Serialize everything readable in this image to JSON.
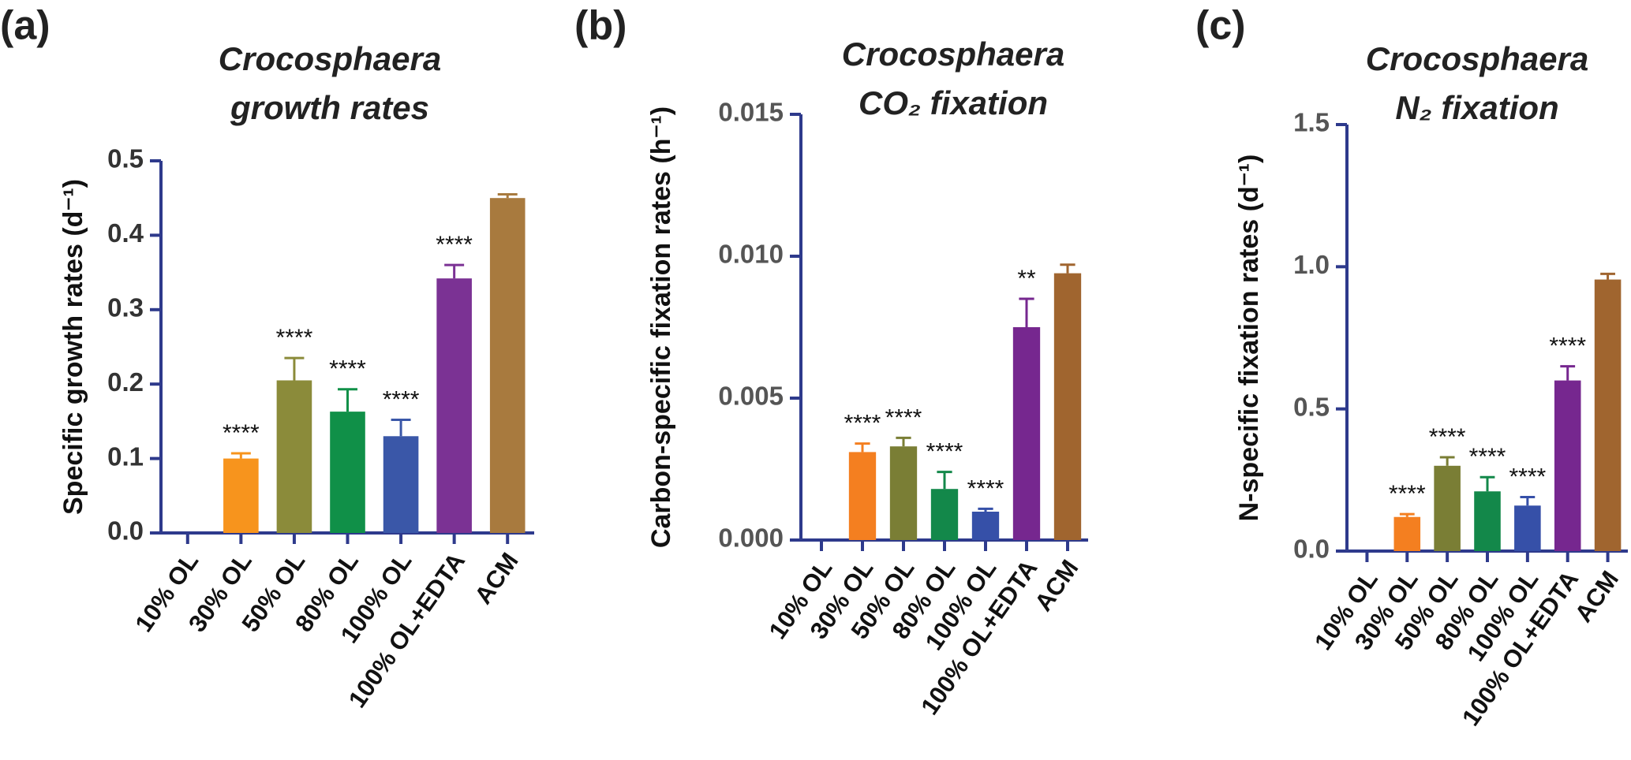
{
  "chart_data": [
    {
      "type": "bar",
      "panel": "(a)",
      "title": [
        "Crocosphaera",
        "growth rates"
      ],
      "ylabel": "Specific growth rates (d⁻¹)",
      "categories": [
        "10% OL",
        "30% OL",
        "50% OL",
        "80% OL",
        "100% OL",
        "100% OL+EDTA",
        "ACM"
      ],
      "values": [
        0,
        0.1,
        0.205,
        0.163,
        0.13,
        0.342,
        0.45
      ],
      "errors": [
        null,
        0.007,
        0.03,
        0.03,
        0.022,
        0.018,
        0.005
      ],
      "annotations": [
        null,
        "****",
        "****",
        "****",
        "****",
        "****",
        null
      ],
      "colors": [
        null,
        "#f7941d",
        "#8b8b3a",
        "#109048",
        "#3a57a8",
        "#7b3294",
        "#a87a3e"
      ],
      "ylim": [
        0,
        0.5
      ],
      "yticks": [
        {
          "value": 0,
          "label": "0.0"
        },
        0.1,
        0.2,
        0.3,
        0.4,
        0.5
      ]
    },
    {
      "type": "bar",
      "panel": "(b)",
      "title": [
        "Crocosphaera",
        "CO₂ fixation"
      ],
      "ylabel": "Carbon-specific fixation rates (h⁻¹)",
      "categories": [
        "10% OL",
        "30% OL",
        "50% OL",
        "80% OL",
        "100% OL",
        "100% OL+EDTA",
        "ACM"
      ],
      "values": [
        0,
        0.0031,
        0.0033,
        0.0018,
        0.001,
        0.0075,
        0.0094
      ],
      "errors": [
        null,
        0.0003,
        0.0003,
        0.0006,
        0.0001,
        0.001,
        0.0003
      ],
      "annotations": [
        null,
        "****",
        "****",
        "****",
        "****",
        "**",
        null
      ],
      "colors": [
        null,
        "#f47f20",
        "#7a7e35",
        "#13884a",
        "#3650a8",
        "#76278f",
        "#a0652f"
      ],
      "ylim": [
        0,
        0.015
      ],
      "yticks": [
        {
          "value": 0,
          "label": "0.000"
        },
        {
          "value": 0.005,
          "label": "0.005"
        },
        {
          "value": 0.01,
          "label": "0.010"
        },
        {
          "value": 0.015,
          "label": "0.015"
        }
      ]
    },
    {
      "type": "bar",
      "panel": "(c)",
      "title": [
        "Crocosphaera",
        "N₂ fixation"
      ],
      "ylabel": "N-specific fixation rates (d⁻¹)",
      "categories": [
        "10% OL",
        "30% OL",
        "50% OL",
        "80% OL",
        "100% OL",
        "100% OL+EDTA",
        "ACM"
      ],
      "values": [
        0,
        0.12,
        0.3,
        0.21,
        0.16,
        0.6,
        0.955
      ],
      "errors": [
        null,
        0.01,
        0.03,
        0.05,
        0.03,
        0.05,
        0.02
      ],
      "annotations": [
        null,
        "****",
        "****",
        "****",
        "****",
        "****",
        null
      ],
      "colors": [
        null,
        "#f47f20",
        "#7a7e35",
        "#13884a",
        "#3650a8",
        "#76278f",
        "#a0652f"
      ],
      "ylim": [
        0,
        1.5
      ],
      "yticks": [
        {
          "value": 0,
          "label": "0.0"
        },
        {
          "value": 0.5,
          "label": "0.5"
        },
        {
          "value": 1,
          "label": "1.0"
        },
        {
          "value": 1.5,
          "label": "1.5"
        }
      ]
    }
  ]
}
